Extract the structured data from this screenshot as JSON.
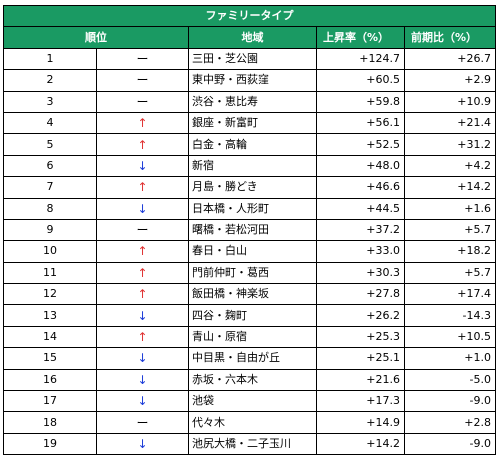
{
  "table": {
    "title": "ファミリータイプ",
    "headers": {
      "rank": "順位",
      "area": "地域",
      "rise": "上昇率（%）",
      "prev": "前期比（%）"
    },
    "colors": {
      "header_bg": "#1a9a63",
      "header_text": "#ffffff",
      "up_arrow": "#e03030",
      "down_arrow": "#1a3ad8"
    },
    "rows": [
      {
        "rank": "1",
        "trend": "flat",
        "mark": "ー",
        "area": "三田・芝公園",
        "rise": "+124.7",
        "prev": "+26.7"
      },
      {
        "rank": "2",
        "trend": "flat",
        "mark": "ー",
        "area": "東中野・西荻窪",
        "rise": "+60.5",
        "prev": "+2.9"
      },
      {
        "rank": "3",
        "trend": "flat",
        "mark": "ー",
        "area": "渋谷・恵比寿",
        "rise": "+59.8",
        "prev": "+10.9"
      },
      {
        "rank": "4",
        "trend": "up",
        "mark": "↑",
        "area": "銀座・新富町",
        "rise": "+56.1",
        "prev": "+21.4"
      },
      {
        "rank": "5",
        "trend": "up",
        "mark": "↑",
        "area": "白金・高輪",
        "rise": "+52.5",
        "prev": "+31.2"
      },
      {
        "rank": "6",
        "trend": "down",
        "mark": "↓",
        "area": "新宿",
        "rise": "+48.0",
        "prev": "+4.2"
      },
      {
        "rank": "7",
        "trend": "up",
        "mark": "↑",
        "area": "月島・勝どき",
        "rise": "+46.6",
        "prev": "+14.2"
      },
      {
        "rank": "8",
        "trend": "down",
        "mark": "↓",
        "area": "日本橋・人形町",
        "rise": "+44.5",
        "prev": "+1.6"
      },
      {
        "rank": "9",
        "trend": "flat",
        "mark": "ー",
        "area": "曙橋・若松河田",
        "rise": "+37.2",
        "prev": "+5.7"
      },
      {
        "rank": "10",
        "trend": "up",
        "mark": "↑",
        "area": "春日・白山",
        "rise": "+33.0",
        "prev": "+18.2"
      },
      {
        "rank": "11",
        "trend": "up",
        "mark": "↑",
        "area": "門前仲町・葛西",
        "rise": "+30.3",
        "prev": "+5.7"
      },
      {
        "rank": "12",
        "trend": "up",
        "mark": "↑",
        "area": "飯田橋・神楽坂",
        "rise": "+27.8",
        "prev": "+17.4"
      },
      {
        "rank": "13",
        "trend": "down",
        "mark": "↓",
        "area": "四谷・麹町",
        "rise": "+26.2",
        "prev": "-14.3"
      },
      {
        "rank": "14",
        "trend": "up",
        "mark": "↑",
        "area": "青山・原宿",
        "rise": "+25.3",
        "prev": "+10.5"
      },
      {
        "rank": "15",
        "trend": "down",
        "mark": "↓",
        "area": "中目黒・自由が丘",
        "rise": "+25.1",
        "prev": "+1.0"
      },
      {
        "rank": "16",
        "trend": "down",
        "mark": "↓",
        "area": "赤坂・六本木",
        "rise": "+21.6",
        "prev": "-5.0"
      },
      {
        "rank": "17",
        "trend": "down",
        "mark": "↓",
        "area": "池袋",
        "rise": "+17.3",
        "prev": "-9.0"
      },
      {
        "rank": "18",
        "trend": "flat",
        "mark": "ー",
        "area": "代々木",
        "rise": "+14.9",
        "prev": "+2.8"
      },
      {
        "rank": "19",
        "trend": "down",
        "mark": "↓",
        "area": "池尻大橋・二子玉川",
        "rise": "+14.2",
        "prev": "-9.0"
      }
    ]
  }
}
